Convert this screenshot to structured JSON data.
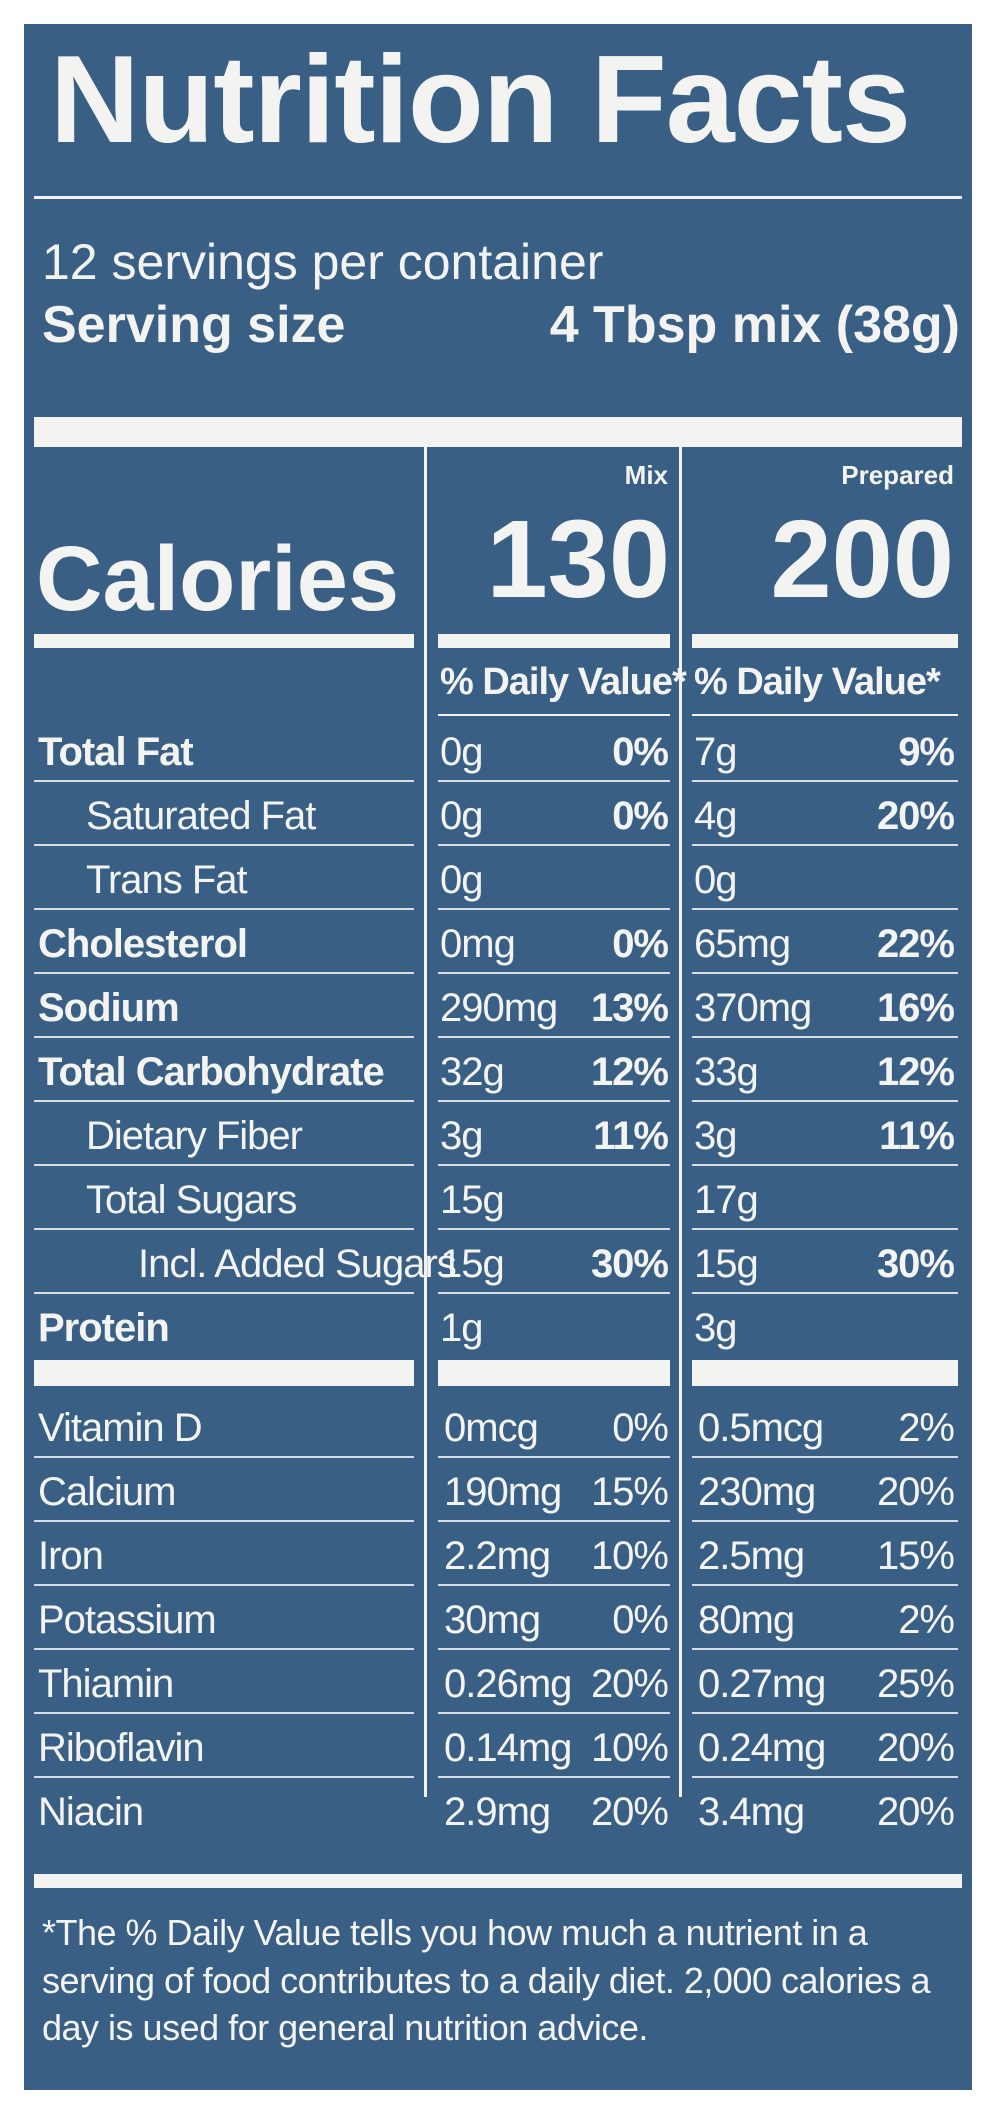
{
  "label": {
    "title": "Nutrition Facts",
    "servings_per_container": "12 servings per container",
    "serving_size_label": "Serving size",
    "serving_size_value": "4 Tbsp mix (38g)",
    "columns": [
      "Mix",
      "Prepared"
    ],
    "calories_label": "Calories",
    "calories": [
      "130",
      "200"
    ],
    "daily_value_header": "% Daily Value*",
    "nutrients": [
      {
        "name": "Total Fat",
        "mix_amount": "0g",
        "mix_dv": "0%",
        "prep_amount": "7g",
        "prep_dv": "9%"
      },
      {
        "name": "Saturated Fat",
        "mix_amount": "0g",
        "mix_dv": "0%",
        "prep_amount": "4g",
        "prep_dv": "20%"
      },
      {
        "name": "Trans Fat",
        "mix_amount": "0g",
        "mix_dv": "",
        "prep_amount": "0g",
        "prep_dv": ""
      },
      {
        "name": "Cholesterol",
        "mix_amount": "0mg",
        "mix_dv": "0%",
        "prep_amount": "65mg",
        "prep_dv": "22%"
      },
      {
        "name": "Sodium",
        "mix_amount": "290mg",
        "mix_dv": "13%",
        "prep_amount": "370mg",
        "prep_dv": "16%"
      },
      {
        "name": "Total Carbohydrate",
        "mix_amount": "32g",
        "mix_dv": "12%",
        "prep_amount": "33g",
        "prep_dv": "12%"
      },
      {
        "name": "Dietary Fiber",
        "mix_amount": "3g",
        "mix_dv": "11%",
        "prep_amount": "3g",
        "prep_dv": "11%"
      },
      {
        "name": "Total Sugars",
        "mix_amount": "15g",
        "mix_dv": "",
        "prep_amount": "17g",
        "prep_dv": ""
      },
      {
        "name": "Incl. Added Sugars",
        "mix_amount": "15g",
        "mix_dv": "30%",
        "prep_amount": "15g",
        "prep_dv": "30%"
      },
      {
        "name": "Protein",
        "mix_amount": "1g",
        "mix_dv": "",
        "prep_amount": "3g",
        "prep_dv": ""
      }
    ],
    "vitamins": [
      {
        "name": "Vitamin D",
        "mix_amount": "0mcg",
        "mix_dv": "0%",
        "prep_amount": "0.5mcg",
        "prep_dv": "2%"
      },
      {
        "name": "Calcium",
        "mix_amount": "190mg",
        "mix_dv": "15%",
        "prep_amount": "230mg",
        "prep_dv": "20%"
      },
      {
        "name": "Iron",
        "mix_amount": "2.2mg",
        "mix_dv": "10%",
        "prep_amount": "2.5mg",
        "prep_dv": "15%"
      },
      {
        "name": "Potassium",
        "mix_amount": "30mg",
        "mix_dv": "0%",
        "prep_amount": "80mg",
        "prep_dv": "2%"
      },
      {
        "name": "Thiamin",
        "mix_amount": "0.26mg",
        "mix_dv": "20%",
        "prep_amount": "0.27mg",
        "prep_dv": "25%"
      },
      {
        "name": "Riboflavin",
        "mix_amount": "0.14mg",
        "mix_dv": "10%",
        "prep_amount": "0.24mg",
        "prep_dv": "20%"
      },
      {
        "name": "Niacin",
        "mix_amount": "2.9mg",
        "mix_dv": "20%",
        "prep_amount": "3.4mg",
        "prep_dv": "20%"
      }
    ],
    "footnote": "*The % Daily Value tells you how much a nutrient in a serving of food contributes to a daily diet. 2,000 calories a day is used for general nutrition advice.",
    "colors": {
      "background": "#3a5f85",
      "text": "#f3f4f1"
    }
  }
}
